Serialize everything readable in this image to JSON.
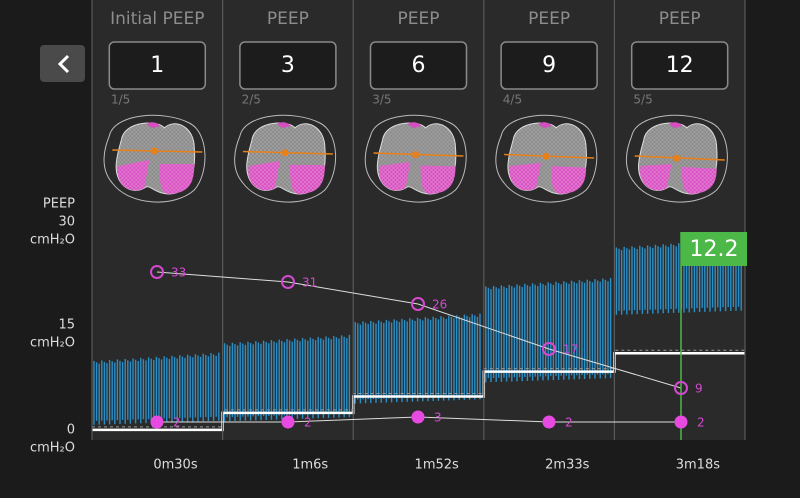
{
  "columns": [
    {
      "header": "Initial PEEP",
      "value": 1,
      "step": "1/5",
      "upper_label": 33,
      "lower_label": 2,
      "time": "0m30s"
    },
    {
      "header": "PEEP",
      "value": 3,
      "step": "2/5",
      "upper_label": 31,
      "lower_label": 2,
      "time": "1m6s"
    },
    {
      "header": "PEEP",
      "value": 6,
      "step": "3/5",
      "upper_label": 26,
      "lower_label": 3,
      "time": "1m52s"
    },
    {
      "header": "PEEP",
      "value": 9,
      "step": "4/5",
      "upper_label": 17,
      "lower_label": 2,
      "time": "2m33s"
    },
    {
      "header": "PEEP",
      "value": 12,
      "step": "5/5",
      "upper_label": 9,
      "lower_label": 2,
      "time": "3m18s"
    }
  ],
  "y_axis": {
    "title": "PEEP",
    "labels": [
      {
        "value": 30,
        "unit": "cmH₂O"
      },
      {
        "value": 15,
        "unit": "cmH₂O"
      },
      {
        "value": 0,
        "unit": "cmH₂O"
      }
    ]
  },
  "current_value": 12.2
}
